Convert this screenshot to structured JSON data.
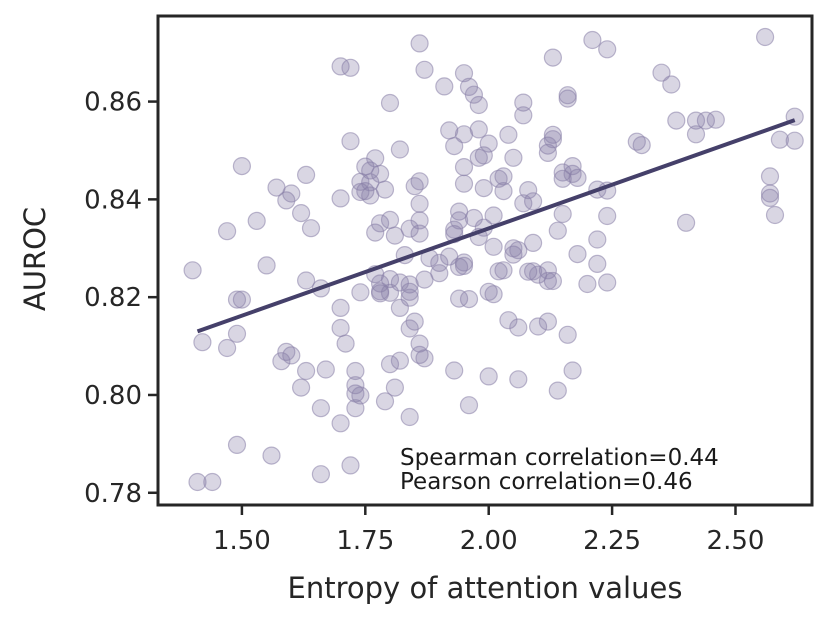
{
  "chart_data": {
    "type": "scatter",
    "title": "",
    "xlabel": "Entropy of attention values",
    "ylabel": "AUROC",
    "xlim": [
      1.33,
      2.655
    ],
    "ylim": [
      0.7775,
      0.8775
    ],
    "xticks": [
      1.5,
      1.75,
      2.0,
      2.25,
      2.5
    ],
    "xtick_labels": [
      "1.50",
      "1.75",
      "2.00",
      "2.25",
      "2.50"
    ],
    "yticks": [
      0.78,
      0.8,
      0.82,
      0.84,
      0.86
    ],
    "ytick_labels": [
      "0.78",
      "0.80",
      "0.82",
      "0.84",
      "0.86"
    ],
    "point_color": "#8880a8",
    "line_color": "#45406a",
    "fit_line": {
      "x": [
        1.41,
        2.62
      ],
      "y": [
        0.813,
        0.8562
      ]
    },
    "annotations": [
      "Spearman correlation=0.44",
      "Pearson correlation=0.46"
    ],
    "points": [
      [
        1.41,
        0.7822
      ],
      [
        1.44,
        0.7822
      ],
      [
        1.42,
        0.8108
      ],
      [
        1.4,
        0.8255
      ],
      [
        1.47,
        0.8096
      ],
      [
        1.49,
        0.8195
      ],
      [
        1.5,
        0.8195
      ],
      [
        1.49,
        0.8125
      ],
      [
        1.47,
        0.8335
      ],
      [
        1.5,
        0.8468
      ],
      [
        1.53,
        0.8356
      ],
      [
        1.55,
        0.8265
      ],
      [
        1.49,
        0.7898
      ],
      [
        1.56,
        0.7876
      ],
      [
        1.57,
        0.8424
      ],
      [
        1.59,
        0.8398
      ],
      [
        1.6,
        0.8412
      ],
      [
        1.59,
        0.8088
      ],
      [
        1.58,
        0.8069
      ],
      [
        1.6,
        0.8081
      ],
      [
        1.62,
        0.8015
      ],
      [
        1.62,
        0.8372
      ],
      [
        1.63,
        0.845
      ],
      [
        1.64,
        0.8341
      ],
      [
        1.63,
        0.8234
      ],
      [
        1.66,
        0.8218
      ],
      [
        1.66,
        0.7973
      ],
      [
        1.63,
        0.8049
      ],
      [
        1.67,
        0.8052
      ],
      [
        1.66,
        0.7838
      ],
      [
        1.7,
        0.8672
      ],
      [
        1.72,
        0.8669
      ],
      [
        1.72,
        0.8519
      ],
      [
        1.7,
        0.8402
      ],
      [
        1.7,
        0.8178
      ],
      [
        1.7,
        0.8137
      ],
      [
        1.71,
        0.8105
      ],
      [
        1.73,
        0.8049
      ],
      [
        1.73,
        0.802
      ],
      [
        1.73,
        0.8003
      ],
      [
        1.74,
        0.7999
      ],
      [
        1.73,
        0.7973
      ],
      [
        1.7,
        0.7942
      ],
      [
        1.72,
        0.7856
      ],
      [
        1.74,
        0.8436
      ],
      [
        1.74,
        0.8415
      ],
      [
        1.76,
        0.8459
      ],
      [
        1.75,
        0.8467
      ],
      [
        1.76,
        0.8435
      ],
      [
        1.77,
        0.8484
      ],
      [
        1.75,
        0.8417
      ],
      [
        1.76,
        0.8408
      ],
      [
        1.78,
        0.8452
      ],
      [
        1.77,
        0.8332
      ],
      [
        1.78,
        0.8351
      ],
      [
        1.79,
        0.842
      ],
      [
        1.8,
        0.8358
      ],
      [
        1.8,
        0.8597
      ],
      [
        1.82,
        0.8502
      ],
      [
        1.77,
        0.8247
      ],
      [
        1.78,
        0.8228
      ],
      [
        1.78,
        0.8212
      ],
      [
        1.8,
        0.8237
      ],
      [
        1.81,
        0.8326
      ],
      [
        1.83,
        0.8286
      ],
      [
        1.82,
        0.823
      ],
      [
        1.82,
        0.8178
      ],
      [
        1.74,
        0.821
      ],
      [
        1.78,
        0.8208
      ],
      [
        1.8,
        0.8209
      ],
      [
        1.82,
        0.807
      ],
      [
        1.81,
        0.8015
      ],
      [
        1.79,
        0.7987
      ],
      [
        1.8,
        0.8063
      ],
      [
        1.84,
        0.8226
      ],
      [
        1.84,
        0.8211
      ],
      [
        1.84,
        0.8199
      ],
      [
        1.84,
        0.8136
      ],
      [
        1.85,
        0.815
      ],
      [
        1.86,
        0.8105
      ],
      [
        1.86,
        0.8082
      ],
      [
        1.87,
        0.8075
      ],
      [
        1.84,
        0.7955
      ],
      [
        1.86,
        0.8437
      ],
      [
        1.85,
        0.8427
      ],
      [
        1.86,
        0.8391
      ],
      [
        1.86,
        0.8357
      ],
      [
        1.84,
        0.834
      ],
      [
        1.86,
        0.833
      ],
      [
        1.87,
        0.8236
      ],
      [
        1.86,
        0.8719
      ],
      [
        1.87,
        0.8665
      ],
      [
        1.88,
        0.828
      ],
      [
        1.9,
        0.827
      ],
      [
        1.9,
        0.8249
      ],
      [
        1.91,
        0.8631
      ],
      [
        1.92,
        0.8541
      ],
      [
        1.93,
        0.8509
      ],
      [
        1.93,
        0.8329
      ],
      [
        1.93,
        0.8338
      ],
      [
        1.92,
        0.8283
      ],
      [
        1.94,
        0.8357
      ],
      [
        1.94,
        0.8375
      ],
      [
        1.94,
        0.8262
      ],
      [
        1.95,
        0.8271
      ],
      [
        1.94,
        0.8197
      ],
      [
        1.95,
        0.8533
      ],
      [
        1.95,
        0.8466
      ],
      [
        1.95,
        0.8432
      ],
      [
        1.96,
        0.863
      ],
      [
        1.95,
        0.8658
      ],
      [
        1.97,
        0.8614
      ],
      [
        1.98,
        0.8593
      ],
      [
        1.98,
        0.8543
      ],
      [
        1.98,
        0.8485
      ],
      [
        1.99,
        0.849
      ],
      [
        2.0,
        0.8514
      ],
      [
        1.99,
        0.8423
      ],
      [
        1.97,
        0.8362
      ],
      [
        1.98,
        0.8323
      ],
      [
        1.99,
        0.8342
      ],
      [
        2.01,
        0.8367
      ],
      [
        2.01,
        0.8303
      ],
      [
        2.0,
        0.8211
      ],
      [
        2.02,
        0.8442
      ],
      [
        2.03,
        0.8447
      ],
      [
        2.03,
        0.8417
      ],
      [
        2.04,
        0.8532
      ],
      [
        2.05,
        0.8485
      ],
      [
        2.05,
        0.83
      ],
      [
        2.03,
        0.8255
      ],
      [
        2.05,
        0.8287
      ],
      [
        2.06,
        0.8296
      ],
      [
        2.04,
        0.8153
      ],
      [
        2.06,
        0.8138
      ],
      [
        2.07,
        0.8598
      ],
      [
        2.07,
        0.8572
      ],
      [
        2.08,
        0.8419
      ],
      [
        2.07,
        0.8392
      ],
      [
        2.09,
        0.8396
      ],
      [
        2.09,
        0.8311
      ],
      [
        2.08,
        0.8252
      ],
      [
        2.09,
        0.8253
      ],
      [
        2.1,
        0.8246
      ],
      [
        2.1,
        0.814
      ],
      [
        2.12,
        0.8495
      ],
      [
        2.12,
        0.851
      ],
      [
        2.13,
        0.8523
      ],
      [
        2.13,
        0.8532
      ],
      [
        2.12,
        0.8255
      ],
      [
        2.12,
        0.8233
      ],
      [
        2.13,
        0.8233
      ],
      [
        2.12,
        0.815
      ],
      [
        2.13,
        0.869
      ],
      [
        2.14,
        0.8336
      ],
      [
        2.15,
        0.837
      ],
      [
        2.15,
        0.8442
      ],
      [
        2.15,
        0.8455
      ],
      [
        2.16,
        0.8613
      ],
      [
        2.16,
        0.8606
      ],
      [
        2.17,
        0.8468
      ],
      [
        2.17,
        0.8452
      ],
      [
        2.18,
        0.8444
      ],
      [
        2.18,
        0.8288
      ],
      [
        2.16,
        0.8123
      ],
      [
        2.17,
        0.805
      ],
      [
        2.14,
        0.8009
      ],
      [
        2.2,
        0.8227
      ],
      [
        2.21,
        0.8726
      ],
      [
        2.22,
        0.842
      ],
      [
        2.22,
        0.8318
      ],
      [
        2.22,
        0.8268
      ],
      [
        2.24,
        0.8418
      ],
      [
        2.24,
        0.8366
      ],
      [
        2.24,
        0.823
      ],
      [
        2.24,
        0.8707
      ],
      [
        2.3,
        0.8518
      ],
      [
        2.31,
        0.8511
      ],
      [
        2.35,
        0.8659
      ],
      [
        2.37,
        0.8635
      ],
      [
        2.38,
        0.8561
      ],
      [
        2.4,
        0.8352
      ],
      [
        2.42,
        0.8533
      ],
      [
        2.42,
        0.8561
      ],
      [
        2.44,
        0.8561
      ],
      [
        2.46,
        0.8563
      ],
      [
        2.56,
        0.8732
      ],
      [
        2.57,
        0.8447
      ],
      [
        2.57,
        0.8412
      ],
      [
        2.57,
        0.8403
      ],
      [
        2.58,
        0.8368
      ],
      [
        2.59,
        0.8522
      ],
      [
        2.62,
        0.8569
      ],
      [
        2.62,
        0.852
      ],
      [
        1.96,
        0.7979
      ],
      [
        2.0,
        0.8038
      ],
      [
        2.06,
        0.8032
      ],
      [
        1.93,
        0.805
      ],
      [
        1.95,
        0.8264
      ],
      [
        2.02,
        0.8253
      ],
      [
        1.96,
        0.8196
      ],
      [
        2.01,
        0.8206
      ]
    ]
  }
}
